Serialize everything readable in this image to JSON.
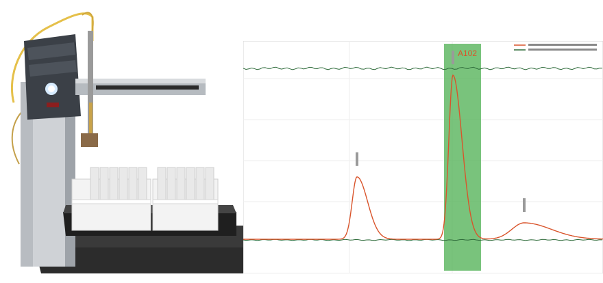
{
  "instrument": {
    "name": "automated-fraction-collector",
    "brand_badge_text": "",
    "base_badge_text": ""
  },
  "chart_data": {
    "type": "line",
    "title": "",
    "xlabel": "",
    "ylabel": "",
    "grid": true,
    "legend_placement": "top-right",
    "highlight": {
      "label": "A102",
      "color": "#4caf50"
    },
    "peaks": [
      {
        "label": "",
        "relative_height": 0.38
      },
      {
        "label": "",
        "relative_height": 1.0
      },
      {
        "label": "",
        "relative_height": 0.1
      }
    ],
    "series": [
      {
        "color": "#d9542b"
      },
      {
        "color": "#2e6b3a"
      }
    ],
    "colors": {
      "signal": "#d9542b",
      "baseline": "#2e6b3a",
      "highlight": "#4caf50"
    }
  }
}
